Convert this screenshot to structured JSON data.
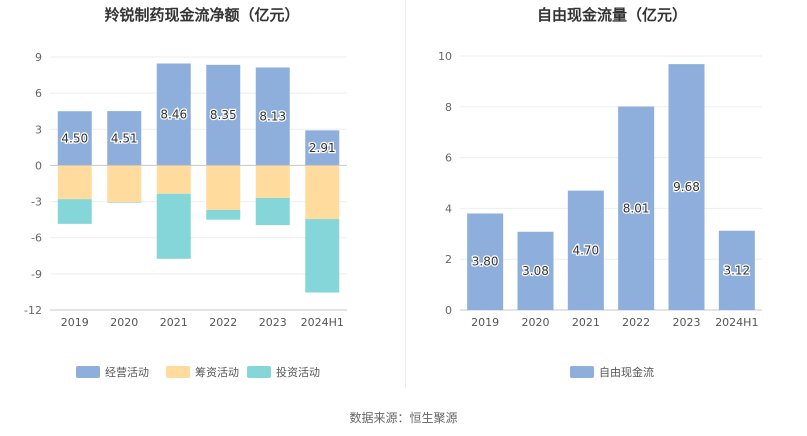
{
  "footer": {
    "source": "数据来源：恒生聚源"
  },
  "chart_data": [
    {
      "type": "bar",
      "stacked": true,
      "title": "羚锐制药现金流净额（亿元）",
      "categories": [
        "2019",
        "2020",
        "2021",
        "2022",
        "2023",
        "2024H1"
      ],
      "ylim": [
        -12,
        9
      ],
      "yticks": [
        9,
        6,
        3,
        0,
        -3,
        -6,
        -9,
        -12
      ],
      "grid": true,
      "legend_position": "bottom",
      "series": [
        {
          "name": "经营活动",
          "color": "#8EAEDB",
          "values": [
            4.5,
            4.51,
            8.46,
            8.35,
            8.13,
            2.91
          ],
          "labels": [
            "4.50",
            "4.51",
            "8.46",
            "8.35",
            "8.13",
            "2.91"
          ]
        },
        {
          "name": "筹资活动",
          "color": "#FFDB9E",
          "values": [
            -2.8,
            -3.05,
            -2.35,
            -3.7,
            -2.7,
            -4.45
          ],
          "labels": []
        },
        {
          "name": "投资活动",
          "color": "#85D6D8",
          "values": [
            -2.05,
            -0.05,
            -5.4,
            -0.8,
            -2.25,
            -6.1
          ],
          "labels": []
        }
      ]
    },
    {
      "type": "bar",
      "title": "自由现金流量（亿元）",
      "categories": [
        "2019",
        "2020",
        "2021",
        "2022",
        "2023",
        "2024H1"
      ],
      "ylim": [
        0,
        10
      ],
      "yticks": [
        10,
        8,
        6,
        4,
        2,
        0
      ],
      "grid": true,
      "legend_position": "bottom",
      "series": [
        {
          "name": "自由现金流",
          "color": "#8EAEDB",
          "values": [
            3.8,
            3.08,
            4.7,
            8.01,
            9.68,
            3.12
          ],
          "labels": [
            "3.80",
            "3.08",
            "4.70",
            "8.01",
            "9.68",
            "3.12"
          ]
        }
      ]
    }
  ]
}
